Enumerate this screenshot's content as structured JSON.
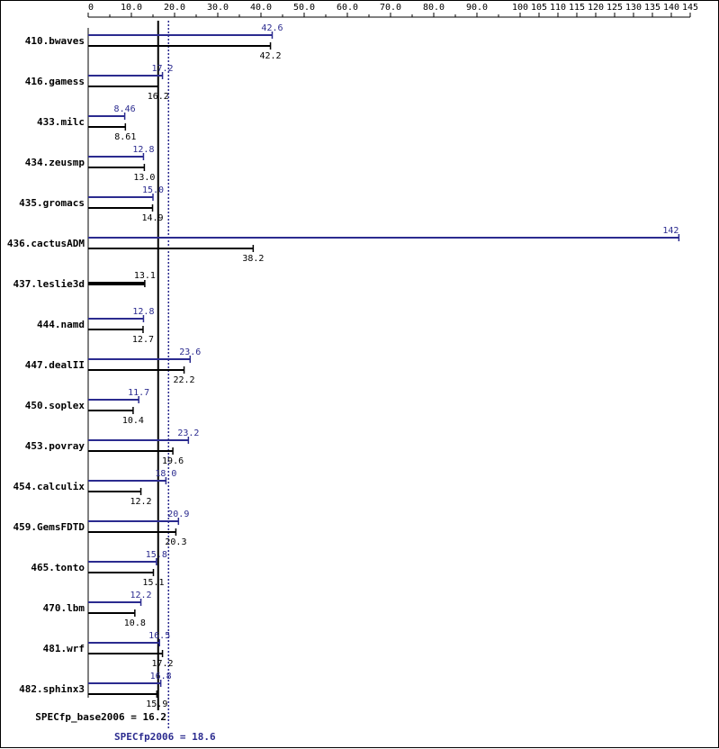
{
  "chart_data": {
    "type": "bar",
    "orientation": "horizontal",
    "xaxis_ticks": [
      "0",
      "10.0",
      "20.0",
      "30.0",
      "40.0",
      "50.0",
      "60.0",
      "70.0",
      "80.0",
      "90.0",
      "100",
      "105",
      "110",
      "115",
      "120",
      "125",
      "130",
      "135",
      "140",
      "145"
    ],
    "xaxis_scale": "piecewise-linear",
    "categories": [
      "410.bwaves",
      "416.gamess",
      "433.milc",
      "434.zeusmp",
      "435.gromacs",
      "436.cactusADM",
      "437.leslie3d",
      "444.namd",
      "447.dealII",
      "450.soplex",
      "453.povray",
      "454.calculix",
      "459.GemsFDTD",
      "465.tonto",
      "470.lbm",
      "481.wrf",
      "482.sphinx3"
    ],
    "series": [
      {
        "name": "SPECfp2006",
        "color": "#2b2b8f",
        "values": [
          42.6,
          17.2,
          8.46,
          12.8,
          15.0,
          142,
          null,
          12.8,
          23.6,
          11.7,
          23.2,
          18.0,
          20.9,
          15.8,
          12.2,
          16.5,
          16.8
        ],
        "labels": [
          "42.6",
          "17.2",
          "8.46",
          "12.8",
          "15.0",
          "142",
          "",
          "12.8",
          "23.6",
          "11.7",
          "23.2",
          "18.0",
          "20.9",
          "15.8",
          "12.2",
          "16.5",
          "16.8"
        ]
      },
      {
        "name": "SPECfp_base2006",
        "color": "#000000",
        "values": [
          42.2,
          16.2,
          8.61,
          13.0,
          14.9,
          38.2,
          13.1,
          12.7,
          22.2,
          10.4,
          19.6,
          12.2,
          20.3,
          15.1,
          10.8,
          17.2,
          15.9
        ],
        "labels": [
          "42.2",
          "16.2",
          "8.61",
          "13.0",
          "14.9",
          "38.2",
          "13.1",
          "12.7",
          "22.2",
          "10.4",
          "19.6",
          "12.2",
          "20.3",
          "15.1",
          "10.8",
          "17.2",
          "15.9"
        ]
      }
    ],
    "reference_lines": [
      {
        "label": "SPECfp_base2006 = 16.2",
        "value": 16.2,
        "style": "solid",
        "color": "#000000"
      },
      {
        "label": "SPECfp2006 = 18.6",
        "value": 18.6,
        "style": "dotted",
        "color": "#2b2b8f"
      }
    ],
    "grid": false,
    "legend": "none"
  }
}
